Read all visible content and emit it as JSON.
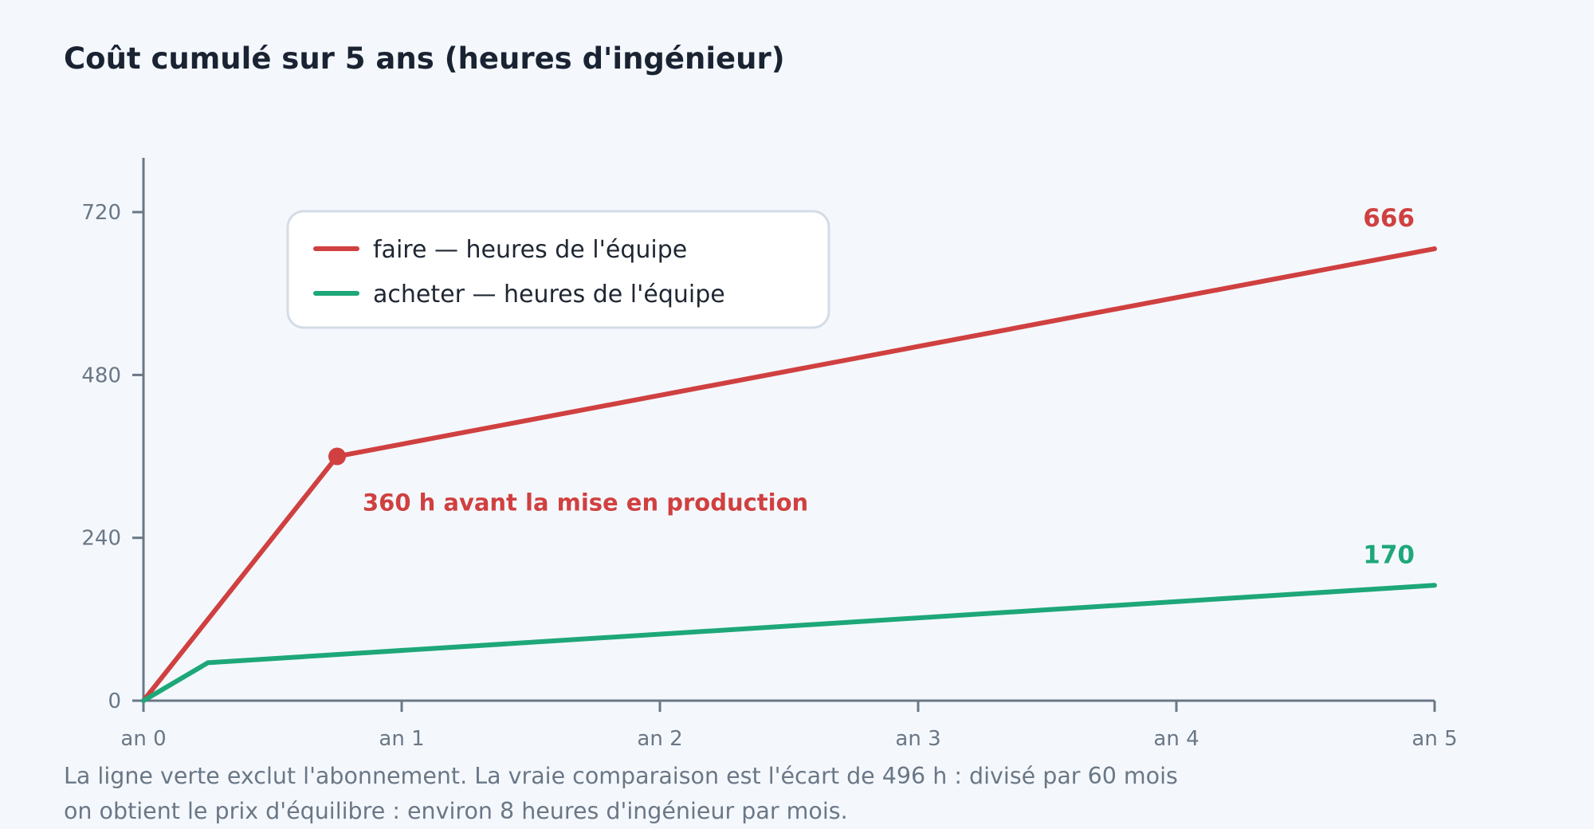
{
  "chart_data": {
    "type": "line",
    "title": "Coût cumulé sur 5 ans (heures d'ingénieur)",
    "xlabel": "",
    "ylabel": "",
    "x_tick_labels": [
      "an 0",
      "an 1",
      "an 2",
      "an 3",
      "an 4",
      "an 5"
    ],
    "x_range": [
      0,
      5
    ],
    "y_ticks": [
      0,
      240,
      480,
      720
    ],
    "ylim": [
      0,
      800
    ],
    "grid": false,
    "legend_position": "top-left",
    "series": [
      {
        "name": "faire — heures de l'équipe",
        "color": "#d04040",
        "points": [
          [
            0,
            0
          ],
          [
            0.75,
            360
          ],
          [
            5,
            666
          ]
        ],
        "end_label": "666"
      },
      {
        "name": "acheter — heures de l'équipe",
        "color": "#1ea779",
        "points": [
          [
            0,
            0
          ],
          [
            0.25,
            56
          ],
          [
            5,
            170
          ]
        ],
        "end_label": "170"
      }
    ],
    "annotations": [
      {
        "text": "360 h avant la mise en production",
        "x": 0.75,
        "y": 360,
        "series": 0
      }
    ]
  },
  "note": {
    "lines": [
      "La ligne verte exclut l'abonnement. La vraie comparaison est l'écart de 496 h : divisé par 60 mois",
      "on obtient le prix d'équilibre : environ 8 heures d'ingénieur par mois."
    ]
  },
  "colors": {
    "axis": "#6b7785",
    "text": "#1a2332",
    "background": "#f4f8fd",
    "legend_border": "#d4dce6"
  }
}
